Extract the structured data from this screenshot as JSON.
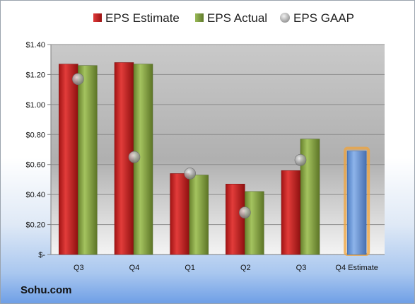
{
  "legend": {
    "estimate": "EPS Estimate",
    "actual": "EPS Actual",
    "gaap": "EPS GAAP"
  },
  "brand": "Sohu.com",
  "colors": {
    "estimate": "#c0211f",
    "actual": "#7f9a3f",
    "gaap": "#b8b8b8",
    "future": "#6a9ad8",
    "future_glow": "#f0a33a"
  },
  "chart_data": {
    "type": "bar",
    "categories": [
      "Q3",
      "Q4",
      "Q1",
      "Q2",
      "Q3",
      "Q4 Estimate"
    ],
    "series": [
      {
        "name": "EPS Estimate",
        "values": [
          1.27,
          1.28,
          0.54,
          0.47,
          0.56,
          0.69
        ]
      },
      {
        "name": "EPS Actual",
        "values": [
          1.26,
          1.27,
          0.53,
          0.42,
          0.77,
          null
        ]
      },
      {
        "name": "EPS GAAP",
        "type": "scatter",
        "values": [
          1.17,
          0.65,
          0.54,
          0.28,
          0.63,
          null
        ]
      }
    ],
    "ylim": [
      0,
      1.4
    ],
    "yticks": [
      0,
      0.2,
      0.4,
      0.6,
      0.8,
      1.0,
      1.2,
      1.4
    ],
    "ytick_labels": [
      "$-",
      "$0.20",
      "$0.40",
      "$0.60",
      "$0.80",
      "$1.00",
      "$1.20",
      "$1.40"
    ],
    "grid": true,
    "legend_position": "top"
  }
}
